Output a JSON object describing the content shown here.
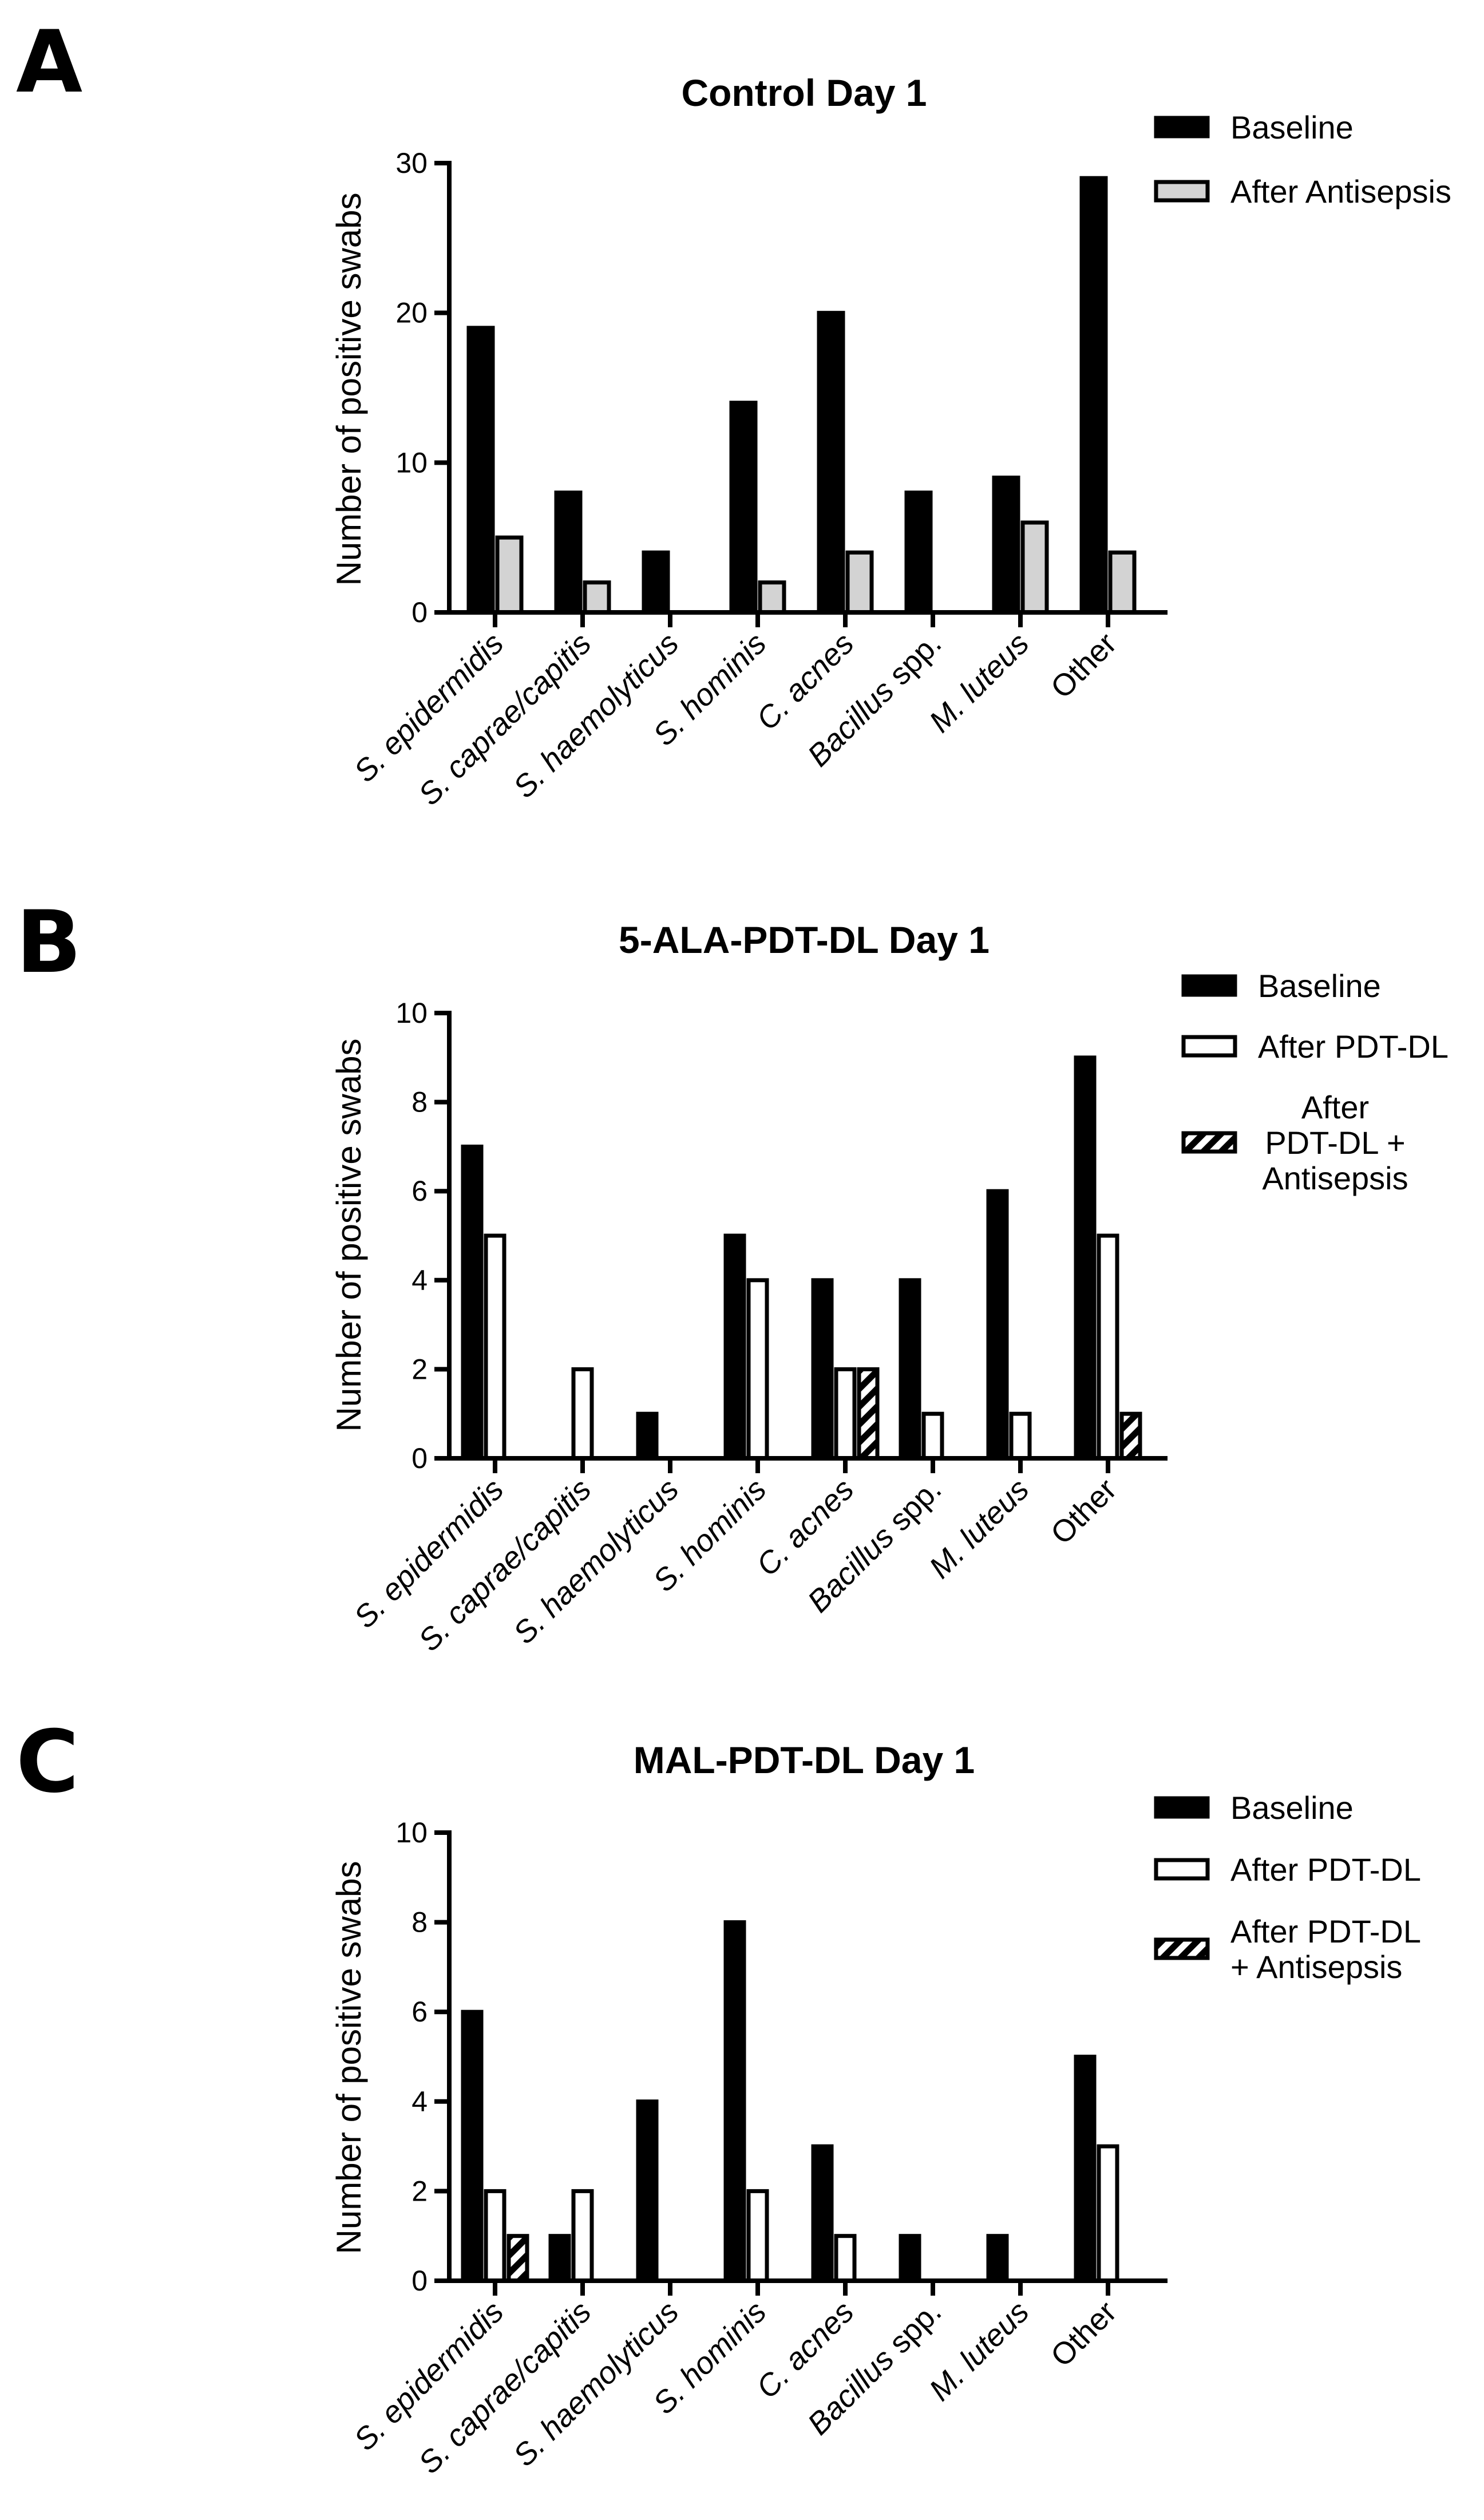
{
  "figure": {
    "panels": [
      "A",
      "B",
      "C"
    ],
    "colors": {
      "baseline": "#000000",
      "after_antisepsis": "#d3d3d3",
      "after_pdt": "#ffffff",
      "hatch": "#000000"
    }
  },
  "chart_data": [
    {
      "type": "bar",
      "panel": "A",
      "title": "Control Day 1",
      "ylabel": "Number of positive swabs",
      "xlabel": "",
      "ylim": [
        0,
        30
      ],
      "yticks": [
        0,
        10,
        20,
        30
      ],
      "categories": [
        {
          "italic": "S. epidermidis",
          "plain": ""
        },
        {
          "italic": "S. caprae/capitis",
          "plain": ""
        },
        {
          "italic": "S. haemolyticus",
          "plain": ""
        },
        {
          "italic": "S. hominis",
          "plain": ""
        },
        {
          "italic": "C. acnes",
          "plain": ""
        },
        {
          "italic": "Bacillus",
          "plain": " spp."
        },
        {
          "italic": "M. luteus",
          "plain": ""
        },
        {
          "italic": "",
          "plain": "Other"
        }
      ],
      "series": [
        {
          "name": "Baseline",
          "style": "black",
          "values": [
            19,
            8,
            4,
            14,
            20,
            8,
            9,
            29
          ]
        },
        {
          "name": "After Antisepsis",
          "style": "gray",
          "values": [
            5,
            2,
            0,
            2,
            4,
            0,
            6,
            4
          ]
        }
      ],
      "legend": [
        {
          "lines": [
            "Baseline"
          ],
          "style": "black"
        },
        {
          "lines": [
            "After Antisepsis"
          ],
          "style": "gray"
        }
      ],
      "legend_position": "top-right"
    },
    {
      "type": "bar",
      "panel": "B",
      "title": "5-ALA-PDT-DL Day 1",
      "ylabel": "Number of positive swabs",
      "xlabel": "",
      "ylim": [
        0,
        10
      ],
      "yticks": [
        0,
        2,
        4,
        6,
        8,
        10
      ],
      "categories": [
        {
          "italic": "S. epidermidis",
          "plain": ""
        },
        {
          "italic": "S. caprae/capitis",
          "plain": ""
        },
        {
          "italic": "S. haemolyticus",
          "plain": ""
        },
        {
          "italic": "S. hominis",
          "plain": ""
        },
        {
          "italic": "C. acnes",
          "plain": ""
        },
        {
          "italic": "Bacillus",
          "plain": " spp."
        },
        {
          "italic": "M. luteus",
          "plain": ""
        },
        {
          "italic": "",
          "plain": "Other"
        }
      ],
      "series": [
        {
          "name": "Baseline",
          "style": "black",
          "values": [
            7,
            0,
            1,
            5,
            4,
            4,
            6,
            9
          ]
        },
        {
          "name": "After PDT-DL",
          "style": "white",
          "values": [
            5,
            2,
            0,
            4,
            2,
            1,
            1,
            5
          ]
        },
        {
          "name": "After PDT-DL + Antisepsis",
          "style": "hatch",
          "values": [
            0,
            0,
            0,
            0,
            2,
            0,
            0,
            1
          ]
        }
      ],
      "legend": [
        {
          "lines": [
            "Baseline"
          ],
          "style": "black"
        },
        {
          "lines": [
            "After PDT-DL"
          ],
          "style": "white"
        },
        {
          "lines": [
            "After",
            "PDT-DL +",
            "Antisepsis"
          ],
          "style": "hatch"
        }
      ],
      "legend_position": "top-right"
    },
    {
      "type": "bar",
      "panel": "C",
      "title": "MAL-PDT-DL Day 1",
      "ylabel": "Number of positive swabs",
      "xlabel": "",
      "ylim": [
        0,
        10
      ],
      "yticks": [
        0,
        2,
        4,
        6,
        8,
        10
      ],
      "categories": [
        {
          "italic": "S. epidermidis",
          "plain": ""
        },
        {
          "italic": "S. caprae/capitis",
          "plain": ""
        },
        {
          "italic": "S. haemolyticus",
          "plain": ""
        },
        {
          "italic": "S. hominis",
          "plain": ""
        },
        {
          "italic": "C. acnes",
          "plain": ""
        },
        {
          "italic": "Bacillus",
          "plain": " spp."
        },
        {
          "italic": "M. luteus",
          "plain": ""
        },
        {
          "italic": "",
          "plain": "Other"
        }
      ],
      "series": [
        {
          "name": "Baseline",
          "style": "black",
          "values": [
            6,
            1,
            4,
            8,
            3,
            1,
            1,
            5
          ]
        },
        {
          "name": "After PDT-DL",
          "style": "white",
          "values": [
            2,
            2,
            0,
            2,
            1,
            0,
            0,
            3
          ]
        },
        {
          "name": "After PDT-DL + Antisepsis",
          "style": "hatch",
          "values": [
            1,
            0,
            0,
            0,
            0,
            0,
            0,
            0
          ]
        }
      ],
      "legend": [
        {
          "lines": [
            "Baseline"
          ],
          "style": "black"
        },
        {
          "lines": [
            "After PDT-DL"
          ],
          "style": "white"
        },
        {
          "lines": [
            "After PDT-DL",
            "+ Antisepsis"
          ],
          "style": "hatch"
        }
      ],
      "legend_position": "top-right"
    }
  ]
}
